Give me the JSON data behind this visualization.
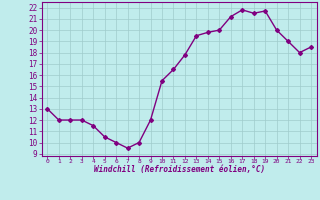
{
  "x": [
    0,
    1,
    2,
    3,
    4,
    5,
    6,
    7,
    8,
    9,
    10,
    11,
    12,
    13,
    14,
    15,
    16,
    17,
    18,
    19,
    20,
    21,
    22,
    23
  ],
  "y": [
    13,
    12,
    12,
    12,
    11.5,
    10.5,
    10,
    9.5,
    10,
    12,
    15.5,
    16.5,
    17.8,
    19.5,
    19.8,
    20,
    21.2,
    21.8,
    21.5,
    21.7,
    20,
    19,
    18,
    18.5
  ],
  "line_color": "#800080",
  "marker": "D",
  "marker_size": 2.0,
  "bg_color": "#c0ecec",
  "grid_color": "#a0cccc",
  "xlabel": "Windchill (Refroidissement éolien,°C)",
  "xlabel_color": "#800080",
  "tick_color": "#800080",
  "ylim": [
    8.8,
    22.5
  ],
  "xlim": [
    -0.5,
    23.5
  ],
  "yticks": [
    9,
    10,
    11,
    12,
    13,
    14,
    15,
    16,
    17,
    18,
    19,
    20,
    21,
    22
  ],
  "xticks": [
    0,
    1,
    2,
    3,
    4,
    5,
    6,
    7,
    8,
    9,
    10,
    11,
    12,
    13,
    14,
    15,
    16,
    17,
    18,
    19,
    20,
    21,
    22,
    23
  ],
  "linewidth": 1.0,
  "spine_color": "#800080"
}
